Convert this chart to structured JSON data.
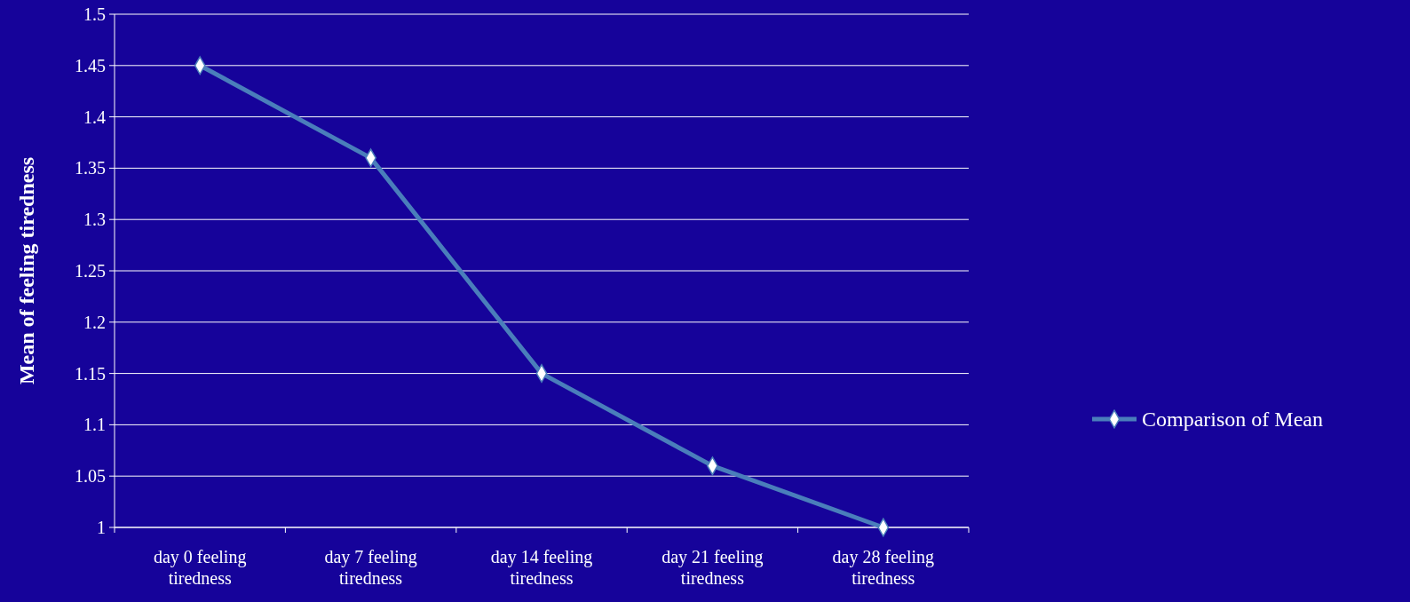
{
  "chart_data": {
    "type": "line",
    "ylabel": "Mean of feeling tiredness",
    "categories": [
      "day 0 feeling tiredness",
      "day 7 feeling tiredness",
      "day 14 feeling tiredness",
      "day 21 feeling tiredness",
      "day 28 feeling tiredness"
    ],
    "series": [
      {
        "name": "Comparison of Mean",
        "color": "#4a7ebb",
        "values": [
          1.45,
          1.36,
          1.15,
          1.06,
          1
        ]
      }
    ],
    "ylim": [
      1,
      1.5
    ],
    "yticks": [
      1,
      1.05,
      1.1,
      1.15,
      1.2,
      1.25,
      1.3,
      1.35,
      1.4,
      1.45,
      1.5
    ],
    "grid": "y",
    "legend": "right",
    "marker": "diamond",
    "line_style": "solid"
  }
}
